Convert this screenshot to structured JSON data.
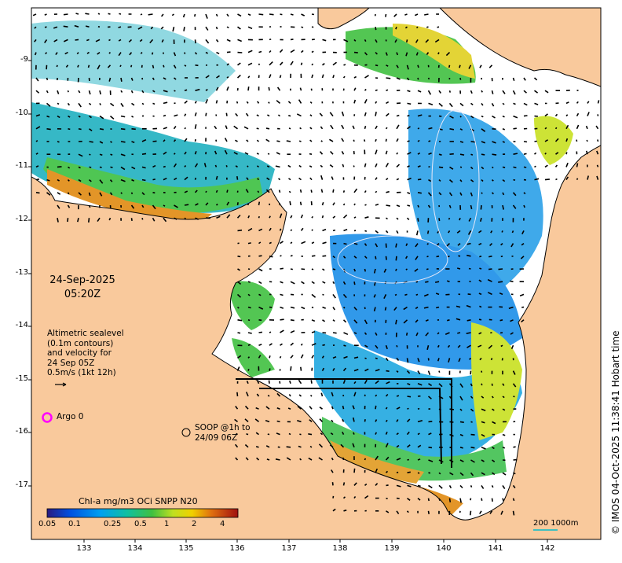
{
  "date": "24-Sep-2025",
  "time": "05:20Z",
  "legend_lines": [
    "Altimetric sealevel",
    "(0.1m contours)",
    "and velocity for",
    "24 Sep 05Z",
    "0.5m/s (1kt 12h)"
  ],
  "argo_label": "Argo 0",
  "soop_lines": [
    "SOOP @1h to",
    "24/09 06Z"
  ],
  "colorbar": {
    "title": "Chl-a mg/m3 OCi SNPP N20",
    "ticks": [
      "0.05",
      "0.1",
      "0.25",
      "0.5",
      "1",
      "2",
      "4"
    ]
  },
  "scale_label": "200  1000m",
  "credit": "© IMOS 04-Oct-2025 11:38:41 Hobart time",
  "axes": {
    "x_ticks": [
      "133",
      "134",
      "135",
      "136",
      "137",
      "138",
      "139",
      "140",
      "141",
      "142"
    ],
    "y_ticks": [
      "-9",
      "-10",
      "-11",
      "-12",
      "-13",
      "-14",
      "-15",
      "-16",
      "-17"
    ]
  },
  "colors": {
    "land": "#f9c99c",
    "water": "#ffffff",
    "argo": "#ff00ff",
    "scale_line": "#40c0c0"
  }
}
